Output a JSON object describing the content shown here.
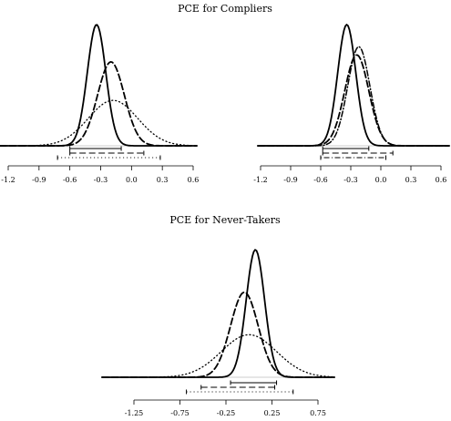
{
  "titles": {
    "top": "PCE for Compliers",
    "bottom": "PCE for Never-Takers"
  },
  "chart_data": [
    {
      "type": "line",
      "title": "PCE for Compliers",
      "panel": "top-left",
      "xlim": [
        -1.2,
        0.6
      ],
      "xticks": [
        "-1.2",
        "-0.9",
        "-0.6",
        "-0.3",
        "0.0",
        "0.3",
        "0.6"
      ],
      "series": [
        {
          "style": "solid",
          "mean": -0.34,
          "sd": 0.09,
          "ci": [
            -0.6,
            -0.1
          ]
        },
        {
          "style": "dashed",
          "mean": -0.2,
          "sd": 0.13,
          "ci": [
            -0.6,
            0.12
          ]
        },
        {
          "style": "dotted",
          "mean": -0.18,
          "sd": 0.24,
          "ci": [
            -0.72,
            0.28
          ]
        }
      ]
    },
    {
      "type": "line",
      "title": "",
      "panel": "top-right",
      "xlim": [
        -1.2,
        0.6
      ],
      "xticks": [
        "-1.2",
        "-0.9",
        "-0.6",
        "-0.3",
        "0.0",
        "0.3",
        "0.6"
      ],
      "series": [
        {
          "style": "solid",
          "mean": -0.34,
          "sd": 0.09,
          "ci": [
            -0.58,
            -0.12
          ]
        },
        {
          "style": "dashed",
          "mean": -0.24,
          "sd": 0.12,
          "ci": [
            -0.58,
            0.12
          ]
        },
        {
          "style": "dotdash",
          "mean": -0.22,
          "sd": 0.11,
          "ci": [
            -0.6,
            0.05
          ]
        }
      ]
    },
    {
      "type": "line",
      "title": "PCE for Never-Takers",
      "panel": "bottom",
      "xlim": [
        -1.25,
        0.75
      ],
      "xticks": [
        "-1.25",
        "-0.75",
        "-0.25",
        "0.25",
        "0.75"
      ],
      "series": [
        {
          "style": "solid",
          "mean": 0.07,
          "sd": 0.1,
          "ci": [
            -0.2,
            0.3
          ]
        },
        {
          "style": "dashed",
          "mean": -0.05,
          "sd": 0.15,
          "ci": [
            -0.52,
            0.28
          ]
        },
        {
          "style": "dotted",
          "mean": 0.0,
          "sd": 0.3,
          "ci": [
            -0.68,
            0.48
          ]
        }
      ]
    }
  ]
}
